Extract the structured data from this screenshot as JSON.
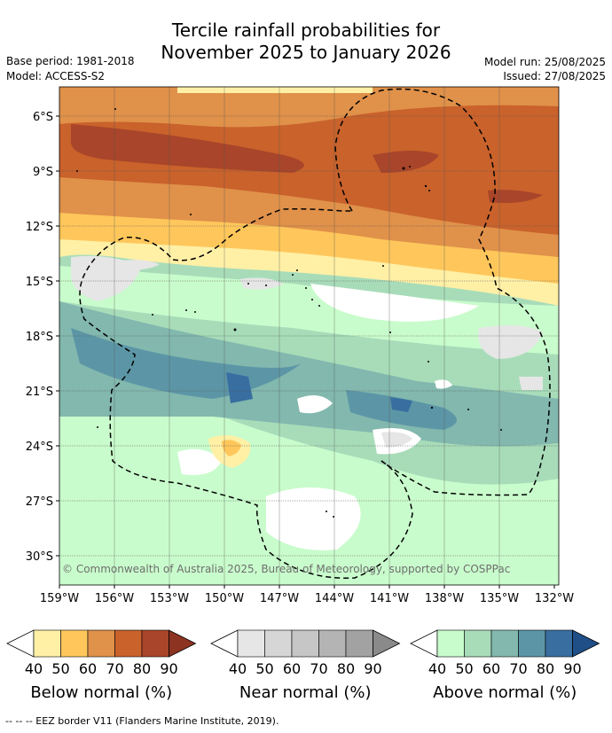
{
  "title": "Tercile rainfall probabilities for\nNovember 2025 to January 2026",
  "base_period": "Base period: 1981-2018",
  "model": "Model: ACCESS-S2",
  "model_run": "Model run: 25/08/2025",
  "issued": "Issued: 27/08/2025",
  "copyright": "© Commonwealth of Australia 2025, Bureau of Meteorology, supported by COSPPac",
  "footnote": "--  --  -- EEZ border V11 (Flanders Marine Institute, 2019).",
  "lat_labels": [
    "6°S",
    "9°S",
    "12°S",
    "15°S",
    "18°S",
    "21°S",
    "24°S",
    "27°S",
    "30°S"
  ],
  "lon_labels": [
    "159°W",
    "156°W",
    "153°W",
    "150°W",
    "147°W",
    "144°W",
    "141°W",
    "138°W",
    "135°W",
    "132°W"
  ],
  "colorbars": [
    {
      "title": "Below normal (%)",
      "ticks": [
        "40",
        "50",
        "60",
        "70",
        "80",
        "90"
      ],
      "colors": [
        "#fff0a6",
        "#ffc75b",
        "#e0914a",
        "#c9622b",
        "#a8452a",
        "#8c3322"
      ]
    },
    {
      "title": "Near normal (%)",
      "ticks": [
        "40",
        "50",
        "60",
        "70",
        "80",
        "90"
      ],
      "colors": [
        "#e6e6e6",
        "#d6d6d6",
        "#c6c6c6",
        "#b4b4b4",
        "#a2a2a2",
        "#8a8a8a"
      ]
    },
    {
      "title": "Above normal (%)",
      "ticks": [
        "40",
        "50",
        "60",
        "70",
        "80",
        "90"
      ],
      "colors": [
        "#c9fccc",
        "#a8dcb9",
        "#82b8ae",
        "#5c96a6",
        "#386ea0",
        "#1f4f86"
      ]
    }
  ],
  "palette": {
    "white": "#ffffff",
    "gridline": "#555555"
  }
}
